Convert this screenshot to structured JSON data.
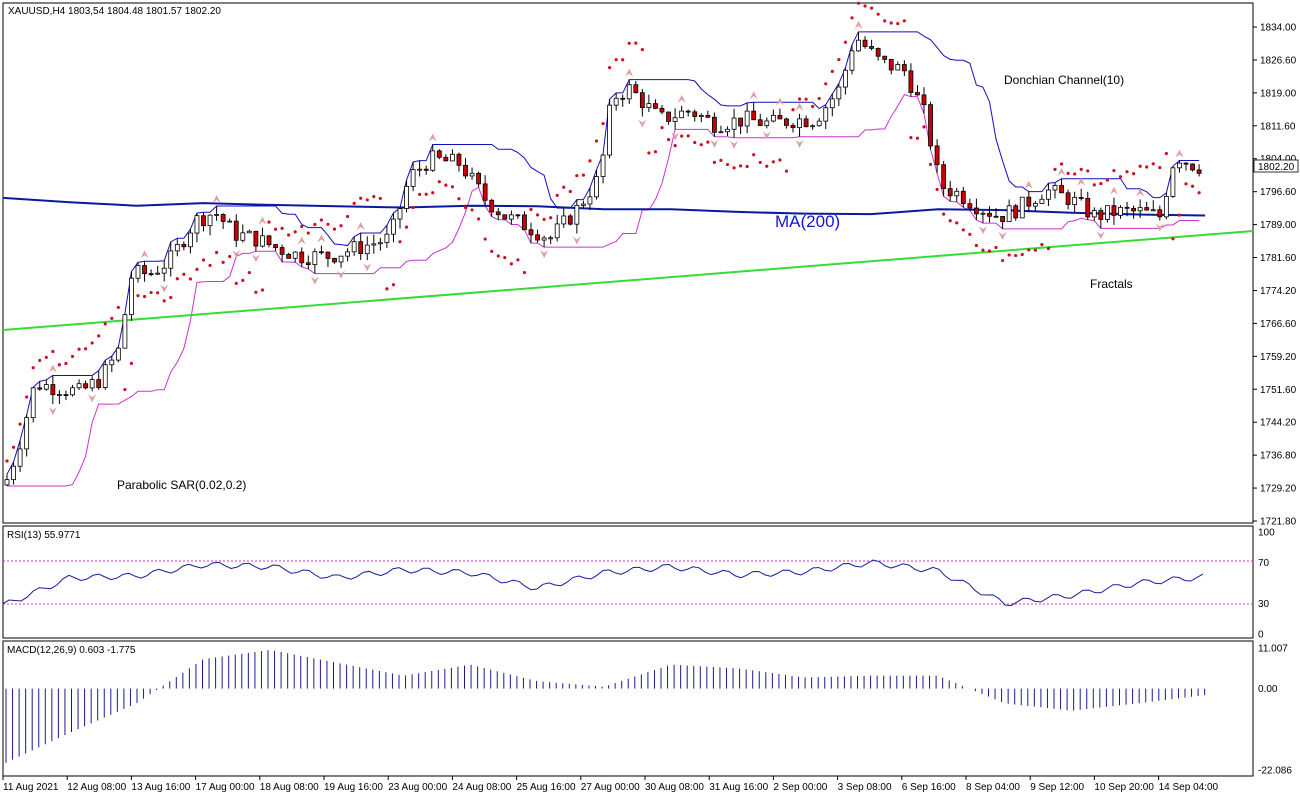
{
  "header": {
    "symbol_label": "XAUUSD,H4  1803,54 1804.48 1801.57 1802.20"
  },
  "price_axis": {
    "ticks": [
      "1834.00",
      "1826.60",
      "1819.00",
      "1811.60",
      "1804.00",
      "1796.60",
      "1789.00",
      "1781.60",
      "1774.20",
      "1766.60",
      "1759.20",
      "1751.60",
      "1744.20",
      "1736.80",
      "1729.20",
      "1721.80"
    ],
    "current_price": "1802.20"
  },
  "time_axis": {
    "ticks": [
      "11 Aug 2021",
      "12 Aug 08:00",
      "13 Aug 16:00",
      "17 Aug 00:00",
      "18 Aug 08:00",
      "19 Aug 16:00",
      "23 Aug 00:00",
      "24 Aug 08:00",
      "25 Aug 16:00",
      "27 Aug 00:00",
      "30 Aug 08:00",
      "31 Aug 16:00",
      "2 Sep 00:00",
      "3 Sep 08:00",
      "6 Sep 16:00",
      "8 Sep 04:00",
      "9 Sep 12:00",
      "10 Sep 20:00",
      "14 Sep 04:00"
    ]
  },
  "annotations": {
    "donchian": "Donchian Channel(10)",
    "ma": "MA(200)",
    "fractals": "Fractals",
    "sar": "Parabolic SAR(0.02,0.2)"
  },
  "rsi": {
    "label": "RSI(13) 55.9771",
    "ticks": [
      "100",
      "70",
      "30",
      "0"
    ]
  },
  "macd": {
    "label": "MACD(12,26,9) 0.603 -1.775",
    "ticks": [
      "11.007",
      "0.00",
      "-22.086"
    ]
  },
  "colors": {
    "bull_candle": "#ffffff",
    "bear_candle": "#cc0000",
    "donchian_upper": "#1010c0",
    "donchian_lower": "#cc33cc",
    "ma": "#0a1aa0",
    "trendline": "#33dd33",
    "sar": "#cc1122",
    "fractal": "#e0a0a0",
    "rsi_line": "#1a1aa0",
    "rsi_level": "#cc33cc",
    "macd_hist": "#1a1a90",
    "macd_signal": "#dd1111"
  },
  "chart_data": {
    "type": "line",
    "instrument": "XAUUSD",
    "timeframe": "H4",
    "ylim": [
      1721.8,
      1834.0
    ],
    "x": [
      "11 Aug 2021",
      "12 Aug 08:00",
      "13 Aug 16:00",
      "17 Aug 00:00",
      "18 Aug 08:00",
      "19 Aug 16:00",
      "23 Aug 00:00",
      "24 Aug 08:00",
      "25 Aug 16:00",
      "27 Aug 00:00",
      "30 Aug 08:00",
      "31 Aug 16:00",
      "2 Sep 00:00",
      "3 Sep 08:00",
      "6 Sep 16:00",
      "8 Sep 04:00",
      "9 Sep 12:00",
      "10 Sep 20:00",
      "14 Sep 04:00"
    ],
    "series": [
      {
        "name": "MA(200)",
        "values": [
          1795.2,
          1794.2,
          1793.4,
          1794.0,
          1793.6,
          1793.3,
          1793.0,
          1793.4,
          1793.3,
          1792.6,
          1792.6,
          1792.0,
          1791.6,
          1791.5,
          1792.6,
          1792.4,
          1791.8,
          1791.4,
          1791.2
        ]
      },
      {
        "name": "RSI(13)",
        "values": [
          28,
          55,
          57,
          68,
          66,
          55,
          63,
          60,
          45,
          60,
          66,
          58,
          61,
          70,
          62,
          30,
          38,
          50,
          56
        ],
        "ylim": [
          0,
          100
        ]
      },
      {
        "name": "MACD(12,26,9)",
        "values": [
          -20.5,
          -12,
          -4,
          8,
          10.5,
          7,
          3.5,
          6.5,
          2.0,
          0.5,
          6.5,
          5.5,
          3,
          3.5,
          3.5,
          -4,
          -6,
          -4,
          -1.775
        ],
        "ylim": [
          -22.086,
          11.007
        ]
      }
    ]
  }
}
